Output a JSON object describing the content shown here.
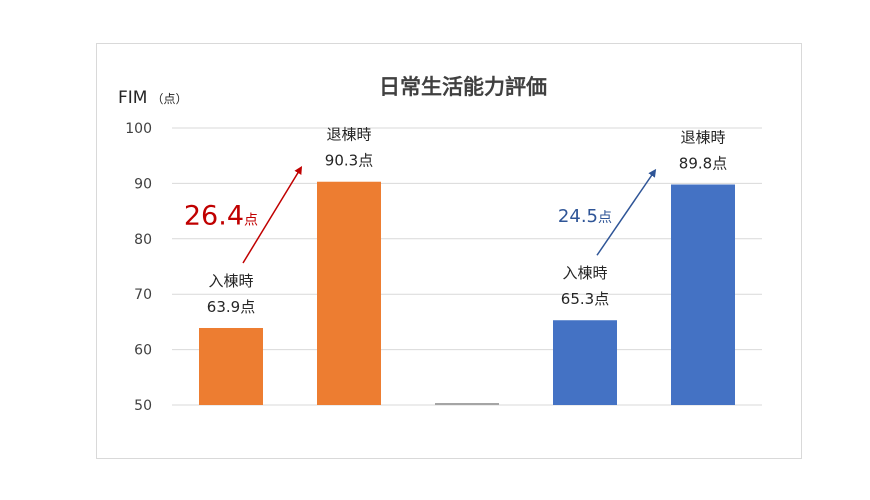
{
  "chart_data": {
    "type": "bar",
    "title": "日常生活能力評価",
    "ylabel": "FIM",
    "ylabel_unit": "（点）",
    "ylim": [
      50,
      100
    ],
    "yticks": [
      50,
      60,
      70,
      80,
      90,
      100
    ],
    "grid": true,
    "bars": [
      {
        "label": "入棟時",
        "value": 63.9,
        "value_label": "63.9点",
        "color": "#ED7D31"
      },
      {
        "label": "退棟時",
        "value": 90.3,
        "value_label": "90.3点",
        "color": "#ED7D31"
      },
      {
        "label": "",
        "value": 50,
        "value_label": "",
        "color": "#A5A5A5"
      },
      {
        "label": "入棟時",
        "value": 65.3,
        "value_label": "65.3点",
        "color": "#4472C4"
      },
      {
        "label": "退棟時",
        "value": 89.8,
        "value_label": "89.8点",
        "color": "#4472C4"
      }
    ],
    "annotations": [
      {
        "value": "26.4",
        "unit": "点",
        "color": "#C00000",
        "from_bar": 0,
        "to_bar": 1
      },
      {
        "value": "24.5",
        "unit": "点",
        "color": "#2F5597",
        "from_bar": 3,
        "to_bar": 4
      }
    ]
  }
}
